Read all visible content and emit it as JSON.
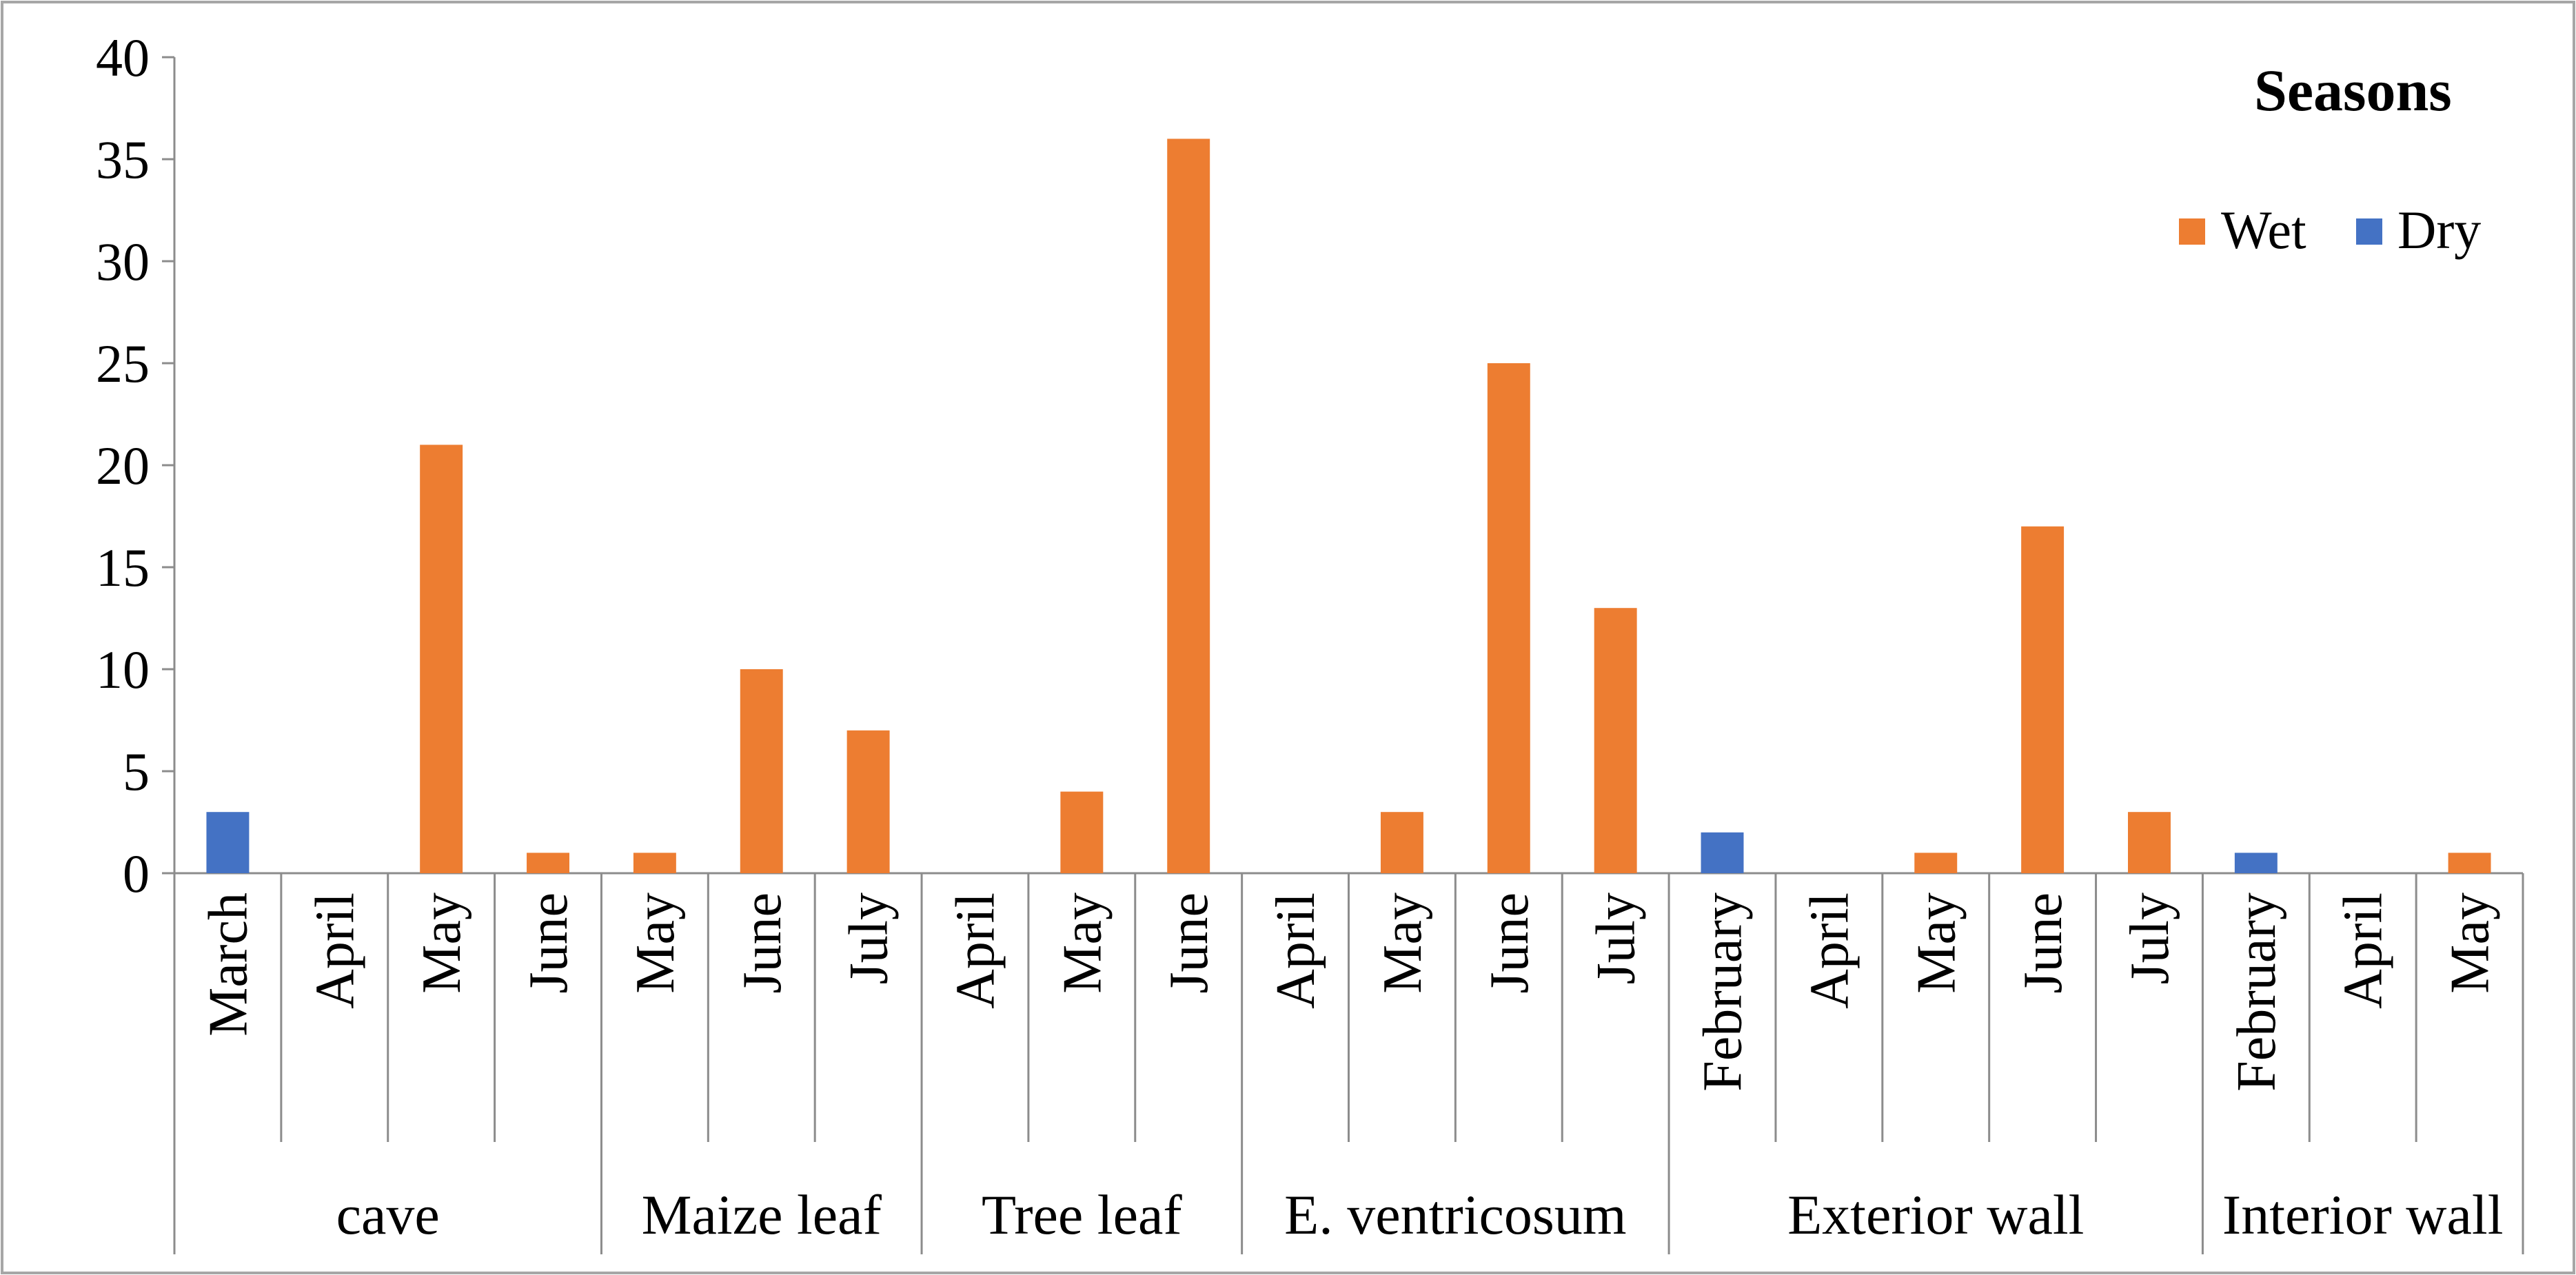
{
  "chart_data": {
    "type": "bar",
    "title": "",
    "xlabel": "",
    "ylabel": "",
    "ylim": [
      0,
      40
    ],
    "yticks": [
      0,
      5,
      10,
      15,
      20,
      25,
      30,
      35,
      40
    ],
    "grid": false,
    "legend": {
      "title": "Seasons",
      "placement": "top-right",
      "entries": [
        {
          "name": "Wet",
          "color": "#ED7D31"
        },
        {
          "name": "Dry",
          "color": "#4472C4"
        }
      ]
    },
    "groups": [
      {
        "name": "cave",
        "months": [
          "March",
          "April",
          "May",
          "June"
        ]
      },
      {
        "name": "Maize leaf",
        "months": [
          "May",
          "June",
          "July"
        ]
      },
      {
        "name": "Tree leaf",
        "months": [
          "April",
          "May",
          "June"
        ]
      },
      {
        "name": "E. ventricosum",
        "months": [
          "April",
          "May",
          "June",
          "July"
        ]
      },
      {
        "name": "Exterior wall",
        "months": [
          "February",
          "April",
          "May",
          "June",
          "July"
        ]
      },
      {
        "name": "Interior wall",
        "months": [
          "February",
          "April",
          "May"
        ]
      }
    ],
    "categories": [
      "March",
      "April",
      "May",
      "June",
      "May",
      "June",
      "July",
      "April",
      "May",
      "June",
      "April",
      "May",
      "June",
      "July",
      "February",
      "April",
      "May",
      "June",
      "July",
      "February",
      "April",
      "May"
    ],
    "series": [
      {
        "name": "Wet",
        "color": "#ED7D31",
        "values": [
          0,
          0,
          21,
          1,
          1,
          10,
          7,
          0,
          4,
          36,
          0,
          3,
          25,
          13,
          0,
          0,
          1,
          17,
          3,
          0,
          0,
          1
        ]
      },
      {
        "name": "Dry",
        "color": "#4472C4",
        "values": [
          3,
          0,
          0,
          0,
          0,
          0,
          0,
          0,
          0,
          0,
          0,
          0,
          0,
          0,
          2,
          0,
          0,
          0,
          0,
          1,
          0,
          0
        ]
      }
    ]
  }
}
